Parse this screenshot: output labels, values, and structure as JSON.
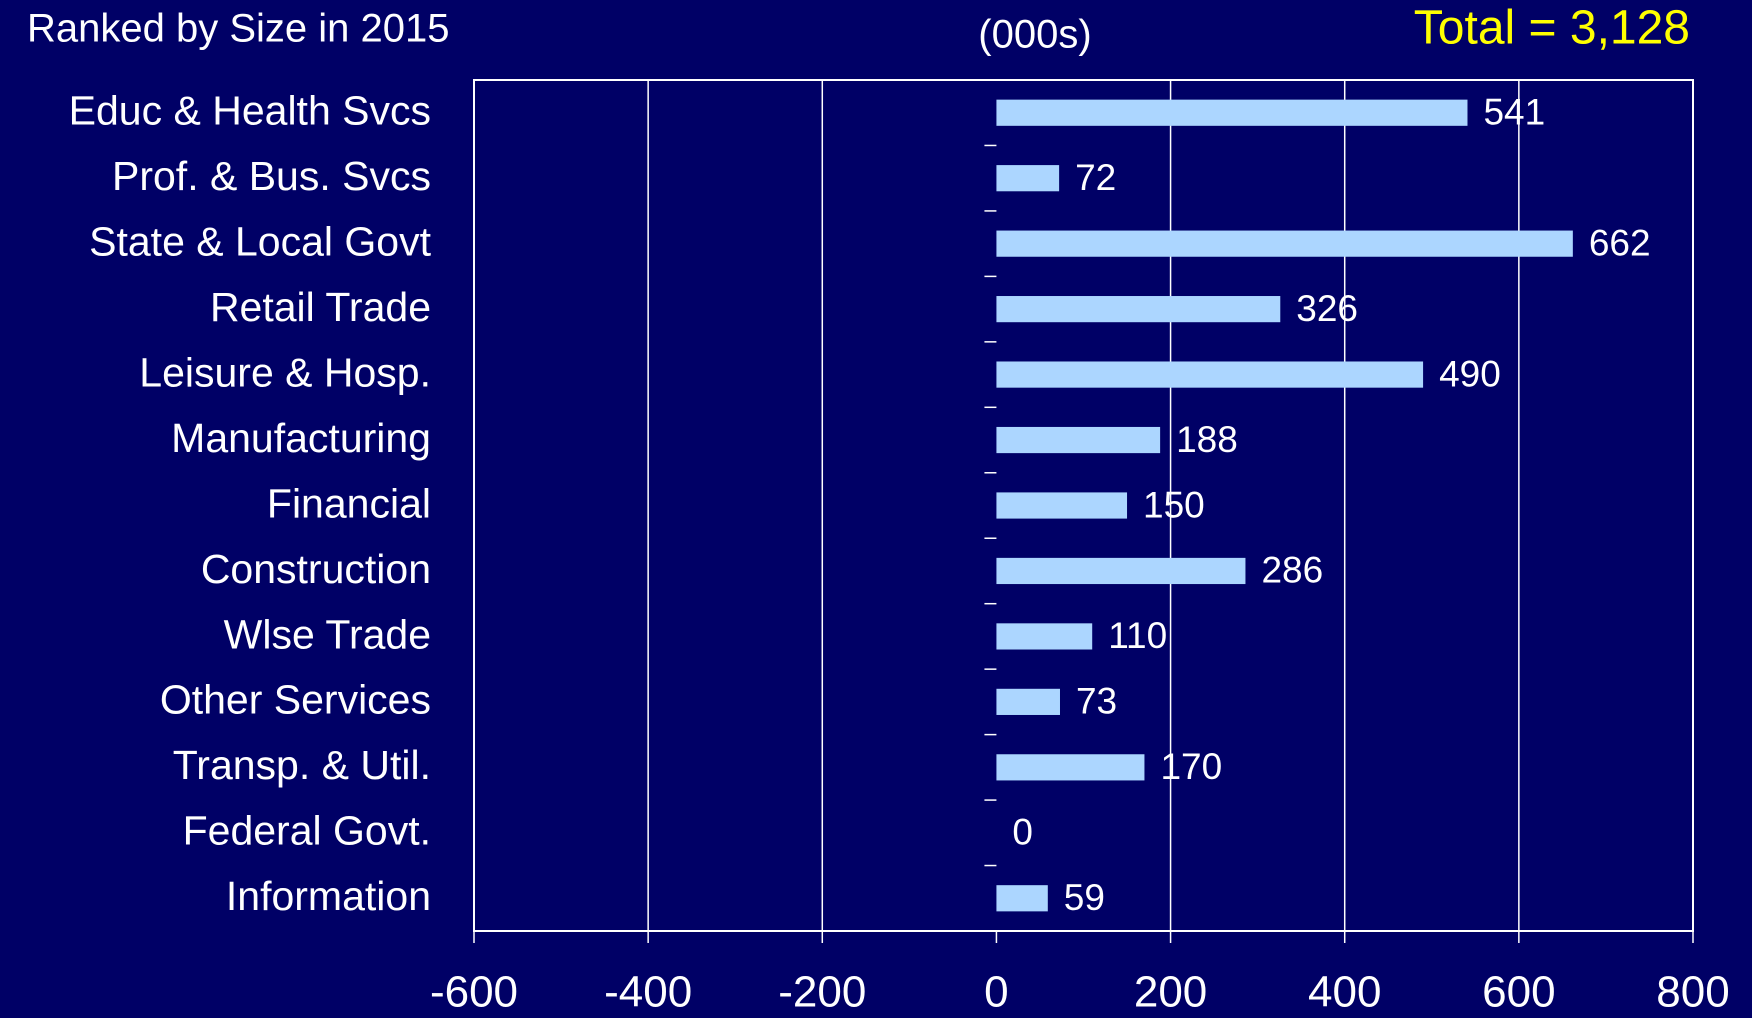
{
  "chart_data": {
    "type": "bar",
    "orientation": "horizontal",
    "title": "Ranked by Size in 2015",
    "unit_label": "(000s)",
    "annotation": "Total = 3,128",
    "categories": [
      "Educ & Health Svcs",
      "Prof. & Bus. Svcs",
      "State & Local Govt",
      "Retail Trade",
      "Leisure & Hosp.",
      "Manufacturing",
      "Financial",
      "Construction",
      "Wlse Trade",
      "Other Services",
      "Transp. & Util.",
      "Federal Govt.",
      "Information"
    ],
    "values": [
      541,
      72,
      662,
      326,
      490,
      188,
      150,
      286,
      110,
      73,
      170,
      0,
      59
    ],
    "color": "#acd6ff",
    "xlim": [
      -600,
      800
    ],
    "xticks": [
      -600,
      -400,
      -200,
      0,
      200,
      400,
      600,
      800
    ],
    "grid": true
  }
}
